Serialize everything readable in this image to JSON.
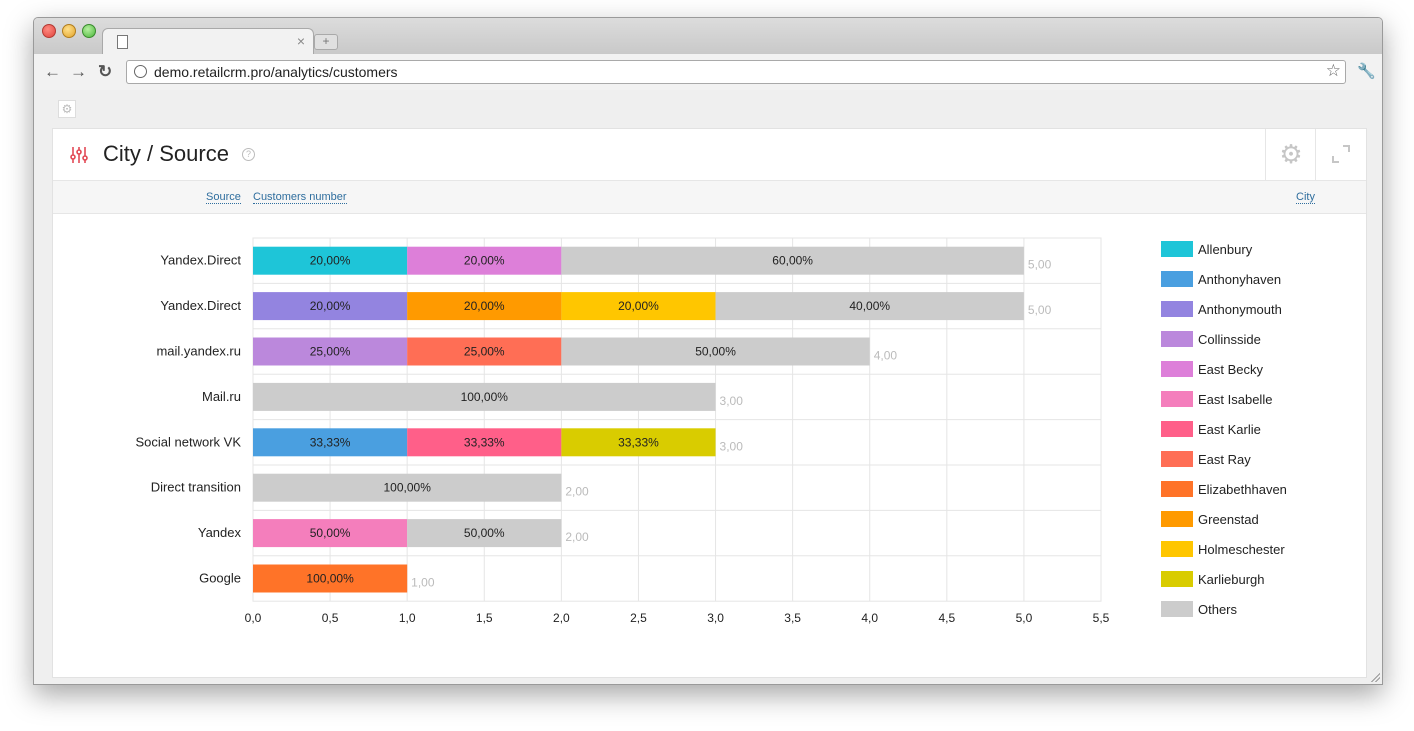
{
  "browser": {
    "url_text": "demo.retailcrm.pro/analytics/customers",
    "tab_close": "×",
    "new_tab": "+"
  },
  "card": {
    "title": "City / Source",
    "help": "?"
  },
  "filters": {
    "source_label": "Source",
    "customers_label": "Customers number",
    "city_label": "City"
  },
  "chart_data": {
    "type": "bar",
    "orientation": "horizontal",
    "stacked": true,
    "categories": [
      "Yandex.Direct",
      "Yandex.Direct",
      "mail.yandex.ru",
      "Mail.ru",
      "Social network VK",
      "Direct transition",
      "Yandex",
      "Google"
    ],
    "totals": [
      5.0,
      5.0,
      4.0,
      3.0,
      3.0,
      2.0,
      2.0,
      1.0
    ],
    "total_labels": [
      "5,00",
      "5,00",
      "4,00",
      "3,00",
      "3,00",
      "2,00",
      "2,00",
      "1,00"
    ],
    "series": [
      {
        "name": "Allenbury",
        "color": "#1ec5d8",
        "values": [
          1,
          0,
          0,
          0,
          0,
          0,
          0,
          0
        ],
        "labels": [
          "20,00%",
          "",
          "",
          "",
          "",
          "",
          "",
          ""
        ]
      },
      {
        "name": "Anthonyhaven",
        "color": "#4a9fe0",
        "values": [
          0,
          0,
          0,
          0,
          1,
          0,
          0,
          0
        ],
        "labels": [
          "",
          "",
          "",
          "",
          "33,33%",
          "",
          "",
          ""
        ]
      },
      {
        "name": "Anthonymouth",
        "color": "#9384e0",
        "values": [
          0,
          1,
          0,
          0,
          0,
          0,
          0,
          0
        ],
        "labels": [
          "",
          "20,00%",
          "",
          "",
          "",
          "",
          "",
          ""
        ]
      },
      {
        "name": "Collinsside",
        "color": "#bb88dc",
        "values": [
          0,
          0,
          1,
          0,
          0,
          0,
          0,
          0
        ],
        "labels": [
          "",
          "",
          "25,00%",
          "",
          "",
          "",
          "",
          ""
        ]
      },
      {
        "name": "East Becky",
        "color": "#dd7fd9",
        "values": [
          1,
          0,
          0,
          0,
          0,
          0,
          0,
          0
        ],
        "labels": [
          "20,00%",
          "",
          "",
          "",
          "",
          "",
          "",
          ""
        ]
      },
      {
        "name": "East Isabelle",
        "color": "#f47ebc",
        "values": [
          0,
          0,
          0,
          0,
          0,
          0,
          1,
          0
        ],
        "labels": [
          "",
          "",
          "",
          "",
          "",
          "",
          "50,00%",
          ""
        ]
      },
      {
        "name": "East Karlie",
        "color": "#ff5f89",
        "values": [
          0,
          0,
          0,
          0,
          1,
          0,
          0,
          0
        ],
        "labels": [
          "",
          "",
          "",
          "",
          "33,33%",
          "",
          "",
          ""
        ]
      },
      {
        "name": "East Ray",
        "color": "#ff6e55",
        "values": [
          0,
          0,
          1,
          0,
          0,
          0,
          0,
          0
        ],
        "labels": [
          "",
          "",
          "25,00%",
          "",
          "",
          "",
          "",
          ""
        ]
      },
      {
        "name": "Elizabethhaven",
        "color": "#ff7328",
        "values": [
          0,
          0,
          0,
          0,
          0,
          0,
          0,
          1
        ],
        "labels": [
          "",
          "",
          "",
          "",
          "",
          "",
          "",
          "100,00%"
        ]
      },
      {
        "name": "Greenstad",
        "color": "#ff9a00",
        "values": [
          0,
          1,
          0,
          0,
          0,
          0,
          0,
          0
        ],
        "labels": [
          "",
          "20,00%",
          "",
          "",
          "",
          "",
          "",
          ""
        ]
      },
      {
        "name": "Holmeschester",
        "color": "#ffc600",
        "values": [
          0,
          1,
          0,
          0,
          0,
          0,
          0,
          0
        ],
        "labels": [
          "",
          "20,00%",
          "",
          "",
          "",
          "",
          "",
          ""
        ]
      },
      {
        "name": "Karlieburgh",
        "color": "#d9cc00",
        "values": [
          0,
          0,
          0,
          0,
          1,
          0,
          0,
          0
        ],
        "labels": [
          "",
          "",
          "",
          "",
          "33,33%",
          "",
          "",
          ""
        ]
      },
      {
        "name": "Others",
        "color": "#cccccc",
        "values": [
          3,
          2,
          2,
          3,
          0,
          2,
          1,
          0
        ],
        "labels": [
          "60,00%",
          "40,00%",
          "50,00%",
          "100,00%",
          "",
          "100,00%",
          "50,00%",
          ""
        ]
      }
    ],
    "stack_order": [
      [
        "Allenbury",
        "East Becky",
        "Others"
      ],
      [
        "Anthonymouth",
        "Greenstad",
        "Holmeschester",
        "Others"
      ],
      [
        "Collinsside",
        "East Ray",
        "Others"
      ],
      [
        "Others"
      ],
      [
        "Anthonyhaven",
        "East Karlie",
        "Karlieburgh"
      ],
      [
        "Others"
      ],
      [
        "East Isabelle",
        "Others"
      ],
      [
        "Elizabethhaven"
      ]
    ],
    "xlim": [
      0,
      5.5
    ],
    "x_ticks": [
      0,
      0.5,
      1,
      1.5,
      2,
      2.5,
      3,
      3.5,
      4,
      4.5,
      5,
      5.5
    ],
    "x_tick_labels": [
      "0,0",
      "0,5",
      "1,0",
      "1,5",
      "2,0",
      "2,5",
      "3,0",
      "3,5",
      "4,0",
      "4,5",
      "5,0",
      "5,5"
    ],
    "grid": true,
    "legend_position": "right"
  }
}
